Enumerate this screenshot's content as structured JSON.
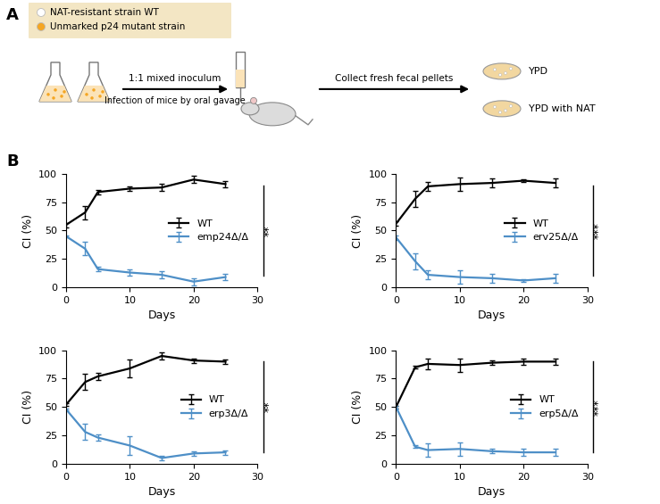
{
  "panel_labels": [
    "A",
    "B"
  ],
  "diagram": {
    "legend": [
      {
        "label": "NAT-resistant strain WT",
        "color": "#ffffff"
      },
      {
        "label": "Unmarked p24 mutant strain",
        "color": "#f5a623"
      }
    ],
    "steps": [
      "1:1 mixed inoculum",
      "Infection of mice by oral gavage",
      "Collect fresh fecal pellets"
    ],
    "plates": [
      "YPD",
      "YPD with NAT"
    ]
  },
  "chart_data": [
    {
      "type": "line",
      "x_label": "Days",
      "y_label": "CI (%)",
      "annotation": "**",
      "x": [
        0,
        3,
        5,
        10,
        15,
        20,
        25
      ],
      "xlim": [
        0,
        30
      ],
      "xticks": [
        0,
        10,
        20,
        30
      ],
      "ylim": [
        0,
        100
      ],
      "yticks": [
        0,
        25,
        50,
        75,
        100
      ],
      "legend": "center right",
      "series": [
        {
          "name": "WT",
          "color": "#000000",
          "values": [
            55,
            66,
            84,
            87,
            88,
            95,
            91
          ],
          "errors": [
            2,
            6,
            2,
            2,
            3,
            3,
            3
          ]
        },
        {
          "name": "emp24Δ/Δ",
          "color": "#4e8fc7",
          "values": [
            45,
            34,
            16,
            13,
            11,
            5,
            9
          ],
          "errors": [
            1,
            6,
            2,
            3,
            3,
            3,
            3
          ]
        }
      ]
    },
    {
      "type": "line",
      "x_label": "Days",
      "y_label": "CI (%)",
      "annotation": "***",
      "x": [
        0,
        3,
        5,
        10,
        15,
        20,
        25
      ],
      "xlim": [
        0,
        30
      ],
      "xticks": [
        0,
        10,
        20,
        30
      ],
      "ylim": [
        0,
        100
      ],
      "yticks": [
        0,
        25,
        50,
        75,
        100
      ],
      "legend": "center right",
      "series": [
        {
          "name": "WT",
          "color": "#000000",
          "values": [
            56,
            78,
            89,
            91,
            92,
            94,
            92
          ],
          "errors": [
            2,
            7,
            4,
            6,
            4,
            1,
            4
          ]
        },
        {
          "name": "erv25Δ/Δ",
          "color": "#4e8fc7",
          "values": [
            44,
            23,
            11,
            9,
            8,
            6,
            8
          ],
          "errors": [
            2,
            7,
            4,
            6,
            4,
            1,
            4
          ]
        }
      ]
    },
    {
      "type": "line",
      "x_label": "Days",
      "y_label": "CI (%)",
      "annotation": "**",
      "x": [
        0,
        3,
        5,
        10,
        15,
        20,
        25
      ],
      "xlim": [
        0,
        30
      ],
      "xticks": [
        0,
        10,
        20,
        30
      ],
      "ylim": [
        0,
        100
      ],
      "yticks": [
        0,
        25,
        50,
        75,
        100
      ],
      "legend": "center right",
      "series": [
        {
          "name": "WT",
          "color": "#000000",
          "values": [
            52,
            72,
            77,
            84,
            95,
            91,
            90
          ],
          "errors": [
            1,
            7,
            3,
            8,
            3,
            2,
            2
          ]
        },
        {
          "name": "erp3Δ/Δ",
          "color": "#4e8fc7",
          "values": [
            48,
            28,
            23,
            16,
            5,
            9,
            10
          ],
          "errors": [
            1,
            7,
            3,
            8,
            2,
            2,
            2
          ]
        }
      ]
    },
    {
      "type": "line",
      "x_label": "Days",
      "y_label": "CI (%)",
      "annotation": "***",
      "x": [
        0,
        3,
        5,
        10,
        15,
        20,
        25
      ],
      "xlim": [
        0,
        30
      ],
      "xticks": [
        0,
        10,
        20,
        30
      ],
      "ylim": [
        0,
        100
      ],
      "yticks": [
        0,
        25,
        50,
        75,
        100
      ],
      "legend": "center right",
      "series": [
        {
          "name": "WT",
          "color": "#000000",
          "values": [
            50,
            85,
            88,
            87,
            89,
            90,
            90
          ],
          "errors": [
            1,
            1,
            5,
            6,
            2,
            3,
            3
          ]
        },
        {
          "name": "erp5Δ/Δ",
          "color": "#4e8fc7",
          "values": [
            50,
            15,
            12,
            13,
            11,
            10,
            10
          ],
          "errors": [
            1,
            1,
            6,
            6,
            2,
            3,
            3
          ]
        }
      ]
    }
  ]
}
